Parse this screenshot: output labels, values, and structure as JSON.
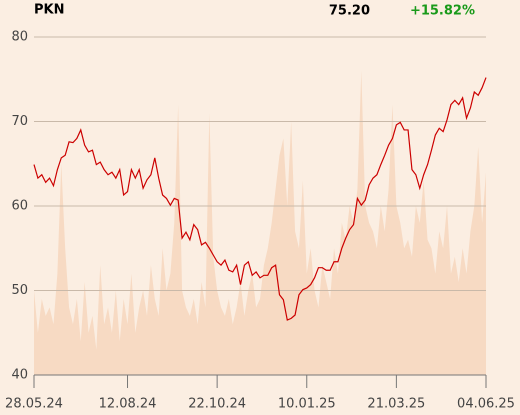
{
  "chart_data": {
    "type": "line",
    "title": "PKN",
    "last_price": "75.20",
    "change": "+15.82%",
    "change_color": "#1a9a1a",
    "background": "#fbeee2",
    "series": [
      {
        "type": "area",
        "color": "#f7dac3",
        "values": [
          50,
          45,
          49,
          47,
          48,
          46,
          52,
          65,
          55,
          48,
          46,
          49,
          44,
          51,
          45,
          47,
          43,
          53,
          46,
          48,
          45,
          50,
          44,
          49,
          46,
          52,
          45,
          48,
          50,
          47,
          53,
          49,
          47,
          55,
          50,
          52,
          58,
          72,
          50,
          48,
          47,
          49,
          46,
          51,
          48,
          71,
          54,
          50,
          48,
          47,
          49,
          46,
          48,
          51,
          47,
          50,
          52,
          48,
          49,
          53,
          55,
          58,
          62,
          66,
          68,
          60,
          70,
          57,
          55,
          63,
          52,
          55,
          50,
          48,
          53,
          51,
          49,
          55,
          52,
          58,
          56,
          60,
          58,
          62,
          76,
          60,
          58,
          57,
          55,
          60,
          57,
          62,
          72,
          60,
          58,
          55,
          56,
          54,
          60,
          58,
          63,
          56,
          55,
          52,
          57,
          55,
          60,
          52,
          54,
          51,
          55,
          52,
          57,
          60,
          67,
          58,
          64
        ]
      },
      {
        "type": "line",
        "color": "#cc0000",
        "values": [
          64.9,
          63.3,
          63.7,
          62.8,
          63.3,
          62.4,
          64.3,
          65.7,
          66.0,
          67.6,
          67.5,
          68.0,
          69.0,
          67.2,
          66.4,
          66.6,
          64.9,
          65.2,
          64.3,
          63.7,
          64.0,
          63.3,
          64.3,
          61.3,
          61.7,
          64.3,
          63.3,
          64.3,
          62.1,
          63.1,
          63.7,
          65.7,
          63.3,
          61.3,
          60.9,
          60.1,
          60.9,
          60.7,
          56.2,
          56.9,
          56.0,
          57.8,
          57.2,
          55.4,
          55.7,
          55.0,
          54.2,
          53.4,
          53.0,
          53.6,
          52.4,
          52.2,
          53.0,
          50.7,
          53.0,
          53.4,
          51.8,
          52.2,
          51.5,
          51.8,
          51.8,
          52.7,
          53.0,
          49.5,
          48.9,
          46.5,
          46.7,
          47.1,
          49.5,
          50.1,
          50.3,
          50.7,
          51.5,
          52.7,
          52.7,
          52.4,
          52.4,
          53.4,
          53.4,
          55.0,
          56.2,
          57.2,
          57.8,
          60.9,
          60.1,
          60.7,
          62.5,
          63.3,
          63.7,
          64.9,
          66.0,
          67.2,
          68.0,
          69.6,
          69.9,
          69.0,
          69.0,
          64.3,
          63.7,
          62.1,
          63.7,
          64.9,
          66.6,
          68.4,
          69.2,
          68.8,
          70.2,
          72.0,
          72.5,
          72.0,
          72.8,
          70.4,
          71.6,
          73.5,
          73.1,
          74.0,
          75.2
        ]
      }
    ],
    "xlim": [
      0,
      116
    ],
    "xticks": [
      {
        "value": 0,
        "label": "28.05.24"
      },
      {
        "value": 24,
        "label": "12.08.24"
      },
      {
        "value": 47,
        "label": "22.10.24"
      },
      {
        "value": 70,
        "label": "10.01.25"
      },
      {
        "value": 93,
        "label": "21.03.25"
      },
      {
        "value": 116,
        "label": "04.06.25"
      }
    ],
    "ylim": [
      40,
      80
    ],
    "yticks": [
      40,
      50,
      60,
      70,
      80
    ],
    "grid": true
  }
}
